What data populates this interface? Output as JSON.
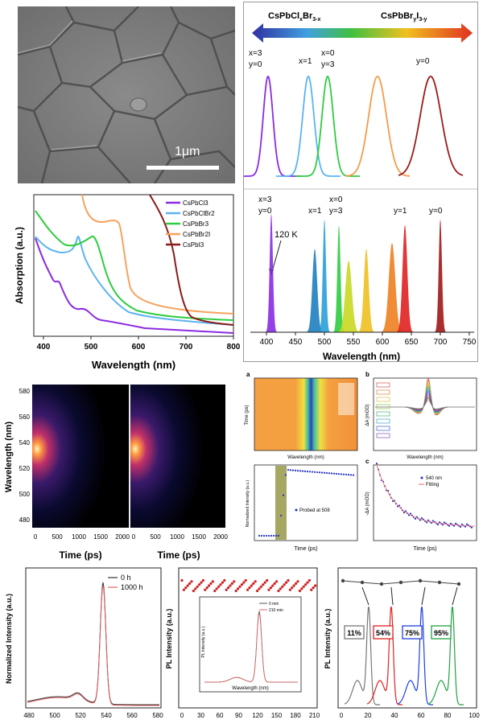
{
  "figure": {
    "sem": {
      "scale_label": "1μm"
    },
    "pl_top": {
      "arrow_left_label": "CsPbCl",
      "arrow_left_sub1": "x",
      "arrow_left_mid": "Br",
      "arrow_left_sub2": "3-x",
      "arrow_right_label": "CsPbBr",
      "arrow_right_sub1": "y",
      "arrow_right_mid": "I",
      "arrow_right_sub2": "3-y",
      "labels_room": [
        "x=3",
        "y=0",
        "x=1",
        "x=0",
        "y=3",
        "y=0"
      ],
      "labels_120k": [
        "x=3",
        "y=0",
        "x=1",
        "x=0",
        "y=3",
        "y=1",
        "y=0"
      ],
      "annotation": "120 K",
      "xlabel": "Wavelength (nm)",
      "xticks": [
        "400",
        "450",
        "500",
        "550",
        "600",
        "650",
        "700",
        "750"
      ],
      "colors": [
        "#8a2be2",
        "#5ab4f0",
        "#2ecc40",
        "#f39c4a",
        "#9b1b1b"
      ]
    },
    "absorption": {
      "ylabel": "Absorption (a.u.)",
      "xlabel": "Wavelength (nm)",
      "xticks": [
        "400",
        "500",
        "600",
        "700",
        "800"
      ],
      "legend": [
        {
          "label": "CsPbCl3",
          "color": "#8a2be2"
        },
        {
          "label": "CsPbClBr2",
          "color": "#5ab4f0"
        },
        {
          "label": "CsPbBr3",
          "color": "#2ecc40"
        },
        {
          "label": "CsPbBr2I",
          "color": "#f5a25d"
        },
        {
          "label": "CsPbI3",
          "color": "#8b1a1a"
        }
      ]
    },
    "streak": {
      "ylabel": "Wavelength (nm)",
      "xlabel": "Time (ps)",
      "yticks": [
        "580",
        "560",
        "540",
        "520",
        "500",
        "480"
      ],
      "xticks": [
        "0",
        "500",
        "1000",
        "1500",
        "2000"
      ]
    },
    "ta": {
      "a_tag": "a",
      "b_tag": "b",
      "c_tag": "c",
      "a_xlabel": "Wavelength (nm)",
      "b_xlabel": "Wavelength (nm)",
      "d_xlabel": "Time (ps)",
      "c_xlabel": "Time (ps)",
      "d_legend": "Probed at 508",
      "c_legend_1": "540 nm",
      "c_legend_2": "Fitting",
      "d_ylabel": "Normalized Intensity (a.u.)",
      "b_ylabel": "ΔA (mOD)",
      "a_ylabel": "Time (ps)",
      "c_ylabel": "-ΔA (mOD)"
    },
    "stability": {
      "ylabel": "Normalized Intensity (a.u.)",
      "legend": [
        "0 h",
        "1000 h"
      ],
      "xticks": [
        "480",
        "500",
        "520",
        "540",
        "560",
        "580"
      ]
    },
    "pl_time": {
      "ylabel": "PL Intensity (a.u.)",
      "xticks": [
        "0",
        "30",
        "60",
        "90",
        "120",
        "150",
        "180",
        "210"
      ],
      "inset_legend": [
        "0 min",
        "210 min"
      ],
      "inset_xlabel": "Wavelength (nm)",
      "inset_ylabel": "PL Intensity (a.u.)"
    },
    "pl_cycle": {
      "ylabel": "PL Intensity (a.u.)",
      "xticks": [
        "0",
        "20",
        "40",
        "60",
        "80",
        "100"
      ],
      "boxes": [
        {
          "label": "11%",
          "color": "#777777"
        },
        {
          "label": "54%",
          "color": "#e02020"
        },
        {
          "label": "75%",
          "color": "#2040e0"
        },
        {
          "label": "95%",
          "color": "#20a040"
        }
      ]
    }
  }
}
